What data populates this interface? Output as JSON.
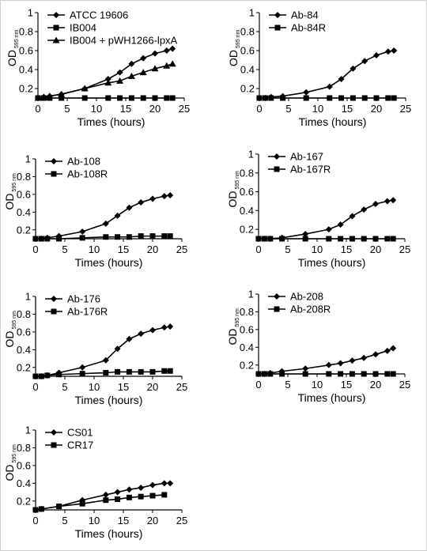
{
  "chart_data": [
    {
      "type": "line",
      "xlabel": "Times (hours)",
      "ylabel": "OD",
      "ylabel_sub": "595 nm",
      "xlim": [
        0,
        25
      ],
      "ylim": [
        0.1,
        1
      ],
      "x_ticks": [
        "0",
        "5",
        "10",
        "15",
        "20",
        "25"
      ],
      "y_ticks": [
        "0.2",
        "0.4",
        "0.6",
        "0.8",
        "1"
      ],
      "legend_position": "top-left",
      "series": [
        {
          "name": "ATCC 19606",
          "marker": "diamond",
          "x": [
            0,
            1,
            2,
            4,
            8,
            12,
            14,
            16,
            18,
            20,
            22,
            23
          ],
          "y": [
            0.1,
            0.11,
            0.12,
            0.14,
            0.2,
            0.3,
            0.37,
            0.46,
            0.52,
            0.57,
            0.6,
            0.62
          ]
        },
        {
          "name": "IB004",
          "marker": "square",
          "x": [
            0,
            1,
            2,
            4,
            8,
            12,
            14,
            16,
            18,
            20,
            22,
            23
          ],
          "y": [
            0.1,
            0.1,
            0.1,
            0.1,
            0.1,
            0.1,
            0.1,
            0.1,
            0.1,
            0.1,
            0.1,
            0.1
          ]
        },
        {
          "name": "IB004 + pWH1266-lpxA",
          "marker": "triangle",
          "x": [
            0,
            1,
            2,
            4,
            8,
            12,
            14,
            16,
            18,
            20,
            22,
            23
          ],
          "y": [
            0.1,
            0.11,
            0.12,
            0.14,
            0.2,
            0.26,
            0.28,
            0.33,
            0.37,
            0.41,
            0.44,
            0.46
          ]
        }
      ]
    },
    {
      "type": "line",
      "xlabel": "Times (hours)",
      "ylabel": "OD",
      "ylabel_sub": "595 nm",
      "xlim": [
        0,
        25
      ],
      "ylim": [
        0.1,
        1
      ],
      "x_ticks": [
        "0",
        "5",
        "10",
        "15",
        "20",
        "25"
      ],
      "y_ticks": [
        "0.2",
        "0.4",
        "0.6",
        "0.8",
        "1"
      ],
      "legend_position": "top-left",
      "series": [
        {
          "name": "Ab-84",
          "marker": "diamond",
          "x": [
            0,
            1,
            2,
            4,
            8,
            12,
            14,
            16,
            18,
            20,
            22,
            23
          ],
          "y": [
            0.1,
            0.1,
            0.11,
            0.12,
            0.16,
            0.22,
            0.3,
            0.41,
            0.49,
            0.55,
            0.59,
            0.6
          ]
        },
        {
          "name": "Ab-84R",
          "marker": "square",
          "x": [
            0,
            1,
            2,
            4,
            8,
            12,
            14,
            16,
            18,
            20,
            22,
            23
          ],
          "y": [
            0.1,
            0.1,
            0.1,
            0.1,
            0.1,
            0.1,
            0.1,
            0.1,
            0.1,
            0.1,
            0.1,
            0.1
          ]
        }
      ]
    },
    {
      "type": "line",
      "xlabel": "Times (hours)",
      "ylabel": "OD",
      "ylabel_sub": "595 nm",
      "xlim": [
        0,
        25
      ],
      "ylim": [
        0.1,
        1
      ],
      "x_ticks": [
        "0",
        "5",
        "10",
        "15",
        "20",
        "25"
      ],
      "y_ticks": [
        "0.2",
        "0.4",
        "0.6",
        "0.8",
        "1"
      ],
      "legend_position": "top-left",
      "series": [
        {
          "name": "Ab-108",
          "marker": "diamond",
          "x": [
            0,
            1,
            2,
            4,
            8,
            12,
            14,
            16,
            18,
            20,
            22,
            23
          ],
          "y": [
            0.1,
            0.1,
            0.11,
            0.13,
            0.18,
            0.27,
            0.36,
            0.45,
            0.51,
            0.55,
            0.58,
            0.59
          ]
        },
        {
          "name": "Ab-108R",
          "marker": "square",
          "x": [
            0,
            1,
            2,
            4,
            8,
            12,
            14,
            16,
            18,
            20,
            22,
            23
          ],
          "y": [
            0.1,
            0.1,
            0.1,
            0.1,
            0.11,
            0.12,
            0.12,
            0.12,
            0.13,
            0.13,
            0.13,
            0.13
          ]
        }
      ]
    },
    {
      "type": "line",
      "xlabel": "Times (hours)",
      "ylabel": "OD",
      "ylabel_sub": "595 nm",
      "xlim": [
        0,
        25
      ],
      "ylim": [
        0.1,
        1
      ],
      "x_ticks": [
        "0",
        "5",
        "10",
        "15",
        "20",
        "25"
      ],
      "y_ticks": [
        "0.2",
        "0.4",
        "0.6",
        "0.8",
        "1"
      ],
      "legend_position": "top-left",
      "series": [
        {
          "name": "Ab-167",
          "marker": "diamond",
          "x": [
            0,
            1,
            2,
            4,
            8,
            12,
            14,
            16,
            18,
            20,
            22,
            23
          ],
          "y": [
            0.1,
            0.1,
            0.1,
            0.11,
            0.15,
            0.2,
            0.25,
            0.34,
            0.41,
            0.47,
            0.5,
            0.51
          ]
        },
        {
          "name": "Ab-167R",
          "marker": "square",
          "x": [
            0,
            1,
            2,
            4,
            8,
            12,
            14,
            16,
            18,
            20,
            22,
            23
          ],
          "y": [
            0.1,
            0.1,
            0.1,
            0.1,
            0.1,
            0.1,
            0.1,
            0.1,
            0.1,
            0.1,
            0.1,
            0.1
          ]
        }
      ]
    },
    {
      "type": "line",
      "xlabel": "Times (hours)",
      "ylabel": "OD",
      "ylabel_sub": "595 nm",
      "xlim": [
        0,
        25
      ],
      "ylim": [
        0.1,
        1
      ],
      "x_ticks": [
        "0",
        "5",
        "10",
        "15",
        "20",
        "25"
      ],
      "y_ticks": [
        "0.2",
        "0.4",
        "0.6",
        "0.8",
        "1"
      ],
      "legend_position": "top-left",
      "series": [
        {
          "name": "Ab-176",
          "marker": "diamond",
          "x": [
            0,
            1,
            2,
            4,
            8,
            12,
            14,
            16,
            18,
            20,
            22,
            23
          ],
          "y": [
            0.1,
            0.1,
            0.11,
            0.14,
            0.2,
            0.28,
            0.41,
            0.52,
            0.58,
            0.62,
            0.65,
            0.66
          ]
        },
        {
          "name": "Ab-176R",
          "marker": "square",
          "x": [
            0,
            1,
            2,
            4,
            8,
            12,
            14,
            16,
            18,
            20,
            22,
            23
          ],
          "y": [
            0.1,
            0.1,
            0.11,
            0.12,
            0.13,
            0.14,
            0.15,
            0.15,
            0.15,
            0.15,
            0.16,
            0.16
          ]
        }
      ]
    },
    {
      "type": "line",
      "xlabel": "Times (hours)",
      "ylabel": "OD",
      "ylabel_sub": "595 nm",
      "xlim": [
        0,
        25
      ],
      "ylim": [
        0.1,
        1
      ],
      "x_ticks": [
        "0",
        "5",
        "10",
        "15",
        "20",
        "25"
      ],
      "y_ticks": [
        "0.2",
        "0.4",
        "0.6",
        "0.8",
        "1"
      ],
      "legend_position": "top-left",
      "series": [
        {
          "name": "Ab-208",
          "marker": "diamond",
          "x": [
            0,
            1,
            2,
            4,
            8,
            12,
            14,
            16,
            18,
            20,
            22,
            23
          ],
          "y": [
            0.1,
            0.1,
            0.11,
            0.13,
            0.16,
            0.2,
            0.22,
            0.25,
            0.28,
            0.32,
            0.36,
            0.39
          ]
        },
        {
          "name": "Ab-208R",
          "marker": "square",
          "x": [
            0,
            1,
            2,
            4,
            8,
            12,
            14,
            16,
            18,
            20,
            22,
            23
          ],
          "y": [
            0.1,
            0.1,
            0.1,
            0.1,
            0.1,
            0.1,
            0.1,
            0.1,
            0.1,
            0.1,
            0.1,
            0.1
          ]
        }
      ]
    },
    {
      "type": "line",
      "xlabel": "Times (hours)",
      "ylabel": "OD",
      "ylabel_sub": "595 nm",
      "xlim": [
        0,
        25
      ],
      "ylim": [
        0.1,
        1
      ],
      "x_ticks": [
        "0",
        "5",
        "10",
        "15",
        "20",
        "25"
      ],
      "y_ticks": [
        "0.2",
        "0.4",
        "0.6",
        "0.8",
        "1"
      ],
      "legend_position": "top-left",
      "series": [
        {
          "name": "CS01",
          "marker": "diamond",
          "x": [
            0,
            1,
            4,
            8,
            12,
            14,
            16,
            18,
            20,
            22,
            23
          ],
          "y": [
            0.1,
            0.11,
            0.14,
            0.21,
            0.27,
            0.3,
            0.33,
            0.35,
            0.38,
            0.4,
            0.4
          ]
        },
        {
          "name": "CR17",
          "marker": "square",
          "x": [
            0,
            1,
            4,
            8,
            12,
            14,
            16,
            18,
            20,
            22
          ],
          "y": [
            0.1,
            0.11,
            0.14,
            0.17,
            0.21,
            0.22,
            0.24,
            0.25,
            0.26,
            0.27
          ]
        }
      ]
    }
  ]
}
